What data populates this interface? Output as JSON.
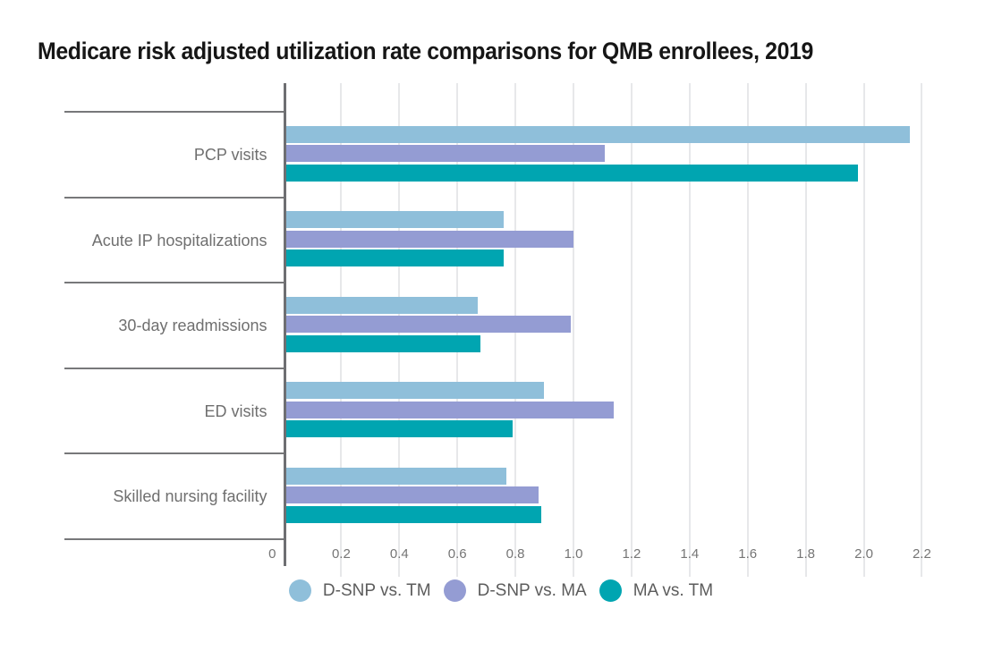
{
  "title": "Medicare risk adjusted utilization rate comparisons for QMB enrollees, 2019",
  "chart_data": {
    "type": "bar",
    "orientation": "horizontal",
    "title": "Medicare risk adjusted utilization rate comparisons for QMB enrollees, 2019",
    "categories": [
      "PCP visits",
      "Acute IP hospitalizations",
      "30-day readmissions",
      "ED visits",
      "Skilled nursing facility"
    ],
    "series": [
      {
        "name": "D-SNP vs. TM",
        "color": "#8FBFDA",
        "values": [
          2.15,
          0.75,
          0.66,
          0.89,
          0.76
        ]
      },
      {
        "name": "D-SNP vs. MA",
        "color": "#949CD3",
        "values": [
          1.1,
          0.99,
          0.98,
          1.13,
          0.87
        ]
      },
      {
        "name": "MA vs. TM",
        "color": "#00A5B1",
        "values": [
          1.97,
          0.75,
          0.67,
          0.78,
          0.88
        ]
      }
    ],
    "x_ticks": [
      0,
      0.2,
      0.4,
      0.6,
      0.8,
      1.0,
      1.2,
      1.4,
      1.6,
      1.8,
      2.0,
      2.2
    ],
    "x_tick_labels": [
      "0",
      "0.2",
      "0.4",
      "0.6",
      "0.8",
      "1.0",
      "1.2",
      "1.4",
      "1.6",
      "1.8",
      "2.0",
      "2.2"
    ],
    "xlim": [
      0,
      2.35
    ],
    "xlabel": "",
    "ylabel": "",
    "grid": "vertical-gridlines-only",
    "legend_position": "bottom"
  }
}
